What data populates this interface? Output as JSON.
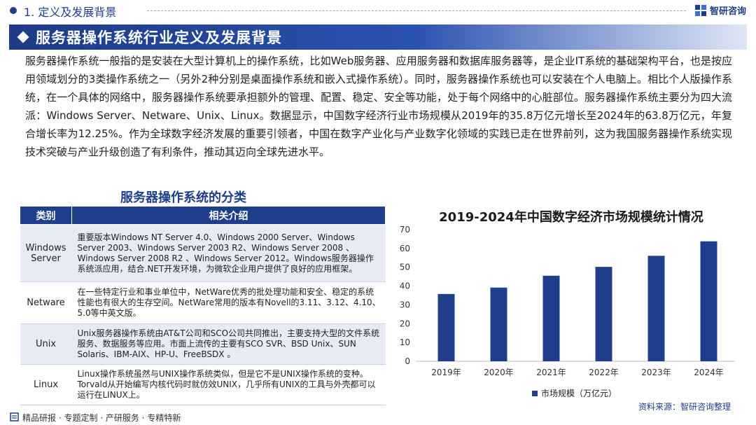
{
  "header": {
    "section_title": "1. 定义及发展背景",
    "brand_name": "智研咨询"
  },
  "banner": {
    "title": "服务器操作系统行业定义及发展背景"
  },
  "intro": "服务器操作系统一般指的是安装在大型计算机上的操作系统，比如Web服务器、应用服务器和数据库服务器等，是企业IT系统的基础架构平台，也是按应用领域划分的3类操作系统之一（另外2种分别是桌面操作系统和嵌入式操作系统）。同时，服务器操作系统也可以安装在个人电脑上。相比个人版操作系统，在一个具体的网络中，服务器操作系统要承担额外的管理、配置、稳定、安全等功能，处于每个网络中的心脏部位。服务器操作系统主要分为四大流派：Windows Server、Netware、Unix、Linux。数据显示，中国数字经济行业市场规模从2019年的35.8万亿元增长至2024年的63.8万亿元，年复合增长率为12.25%。作为全球数字经济发展的重要引领者，中国在数字产业化与产业数字化领域的实践已走在世界前列，这为我国服务器操作系统实现技术突破与产业升级创造了有利条件，推动其迈向全球先进水平。",
  "table": {
    "title": "服务器操作系统的分类",
    "headers": [
      "类别",
      "相关介绍"
    ],
    "rows": [
      {
        "category": "Windows Server",
        "description": "重要版本Windows NT Server 4.0、Windows 2000 Server、Windows Server 2003、Windows Server 2003 R2、Windows Server 2008 、Windows Server 2008 R2 、Windows Server 2012。Windows服务器操作系统派应用，结合.NET开发环境，为微软企业用户提供了良好的应用框架。"
      },
      {
        "category": "Netware",
        "description": "在一些特定行业和事业单位中，NetWare优秀的批处理功能和安全、稳定的系统性能也有很大的生存空间。NetWare常用的版本有Novell的3.11、3.12、4.10、5.0等中英文版。"
      },
      {
        "category": "Unix",
        "description": "Unix服务器操作系统由AT&T公司和SCO公司共同推出，主要支持大型的文件系统服务、数据服务等应用。市面上流传的主要有SCO SVR、BSD Unix、SUN Solaris、IBM-AIX、HP-U、FreeBSDX 。"
      },
      {
        "category": "Linux",
        "description": "Linux操作系统虽然与UNIX操作系统类似，但是它不是UNIX操作系统的变种。Torvald从开始编写内核代码时就仿效UNIX，几乎所有UNIX的工具与外壳都可以运行在LINUX上。"
      }
    ]
  },
  "chart_data": {
    "type": "bar",
    "title": "2019-2024年中国数字经济市场规模统计情况",
    "categories": [
      "2019年",
      "2020年",
      "2021年",
      "2022年",
      "2023年",
      "2024年"
    ],
    "series": [
      {
        "name": "市场规模（万亿元）",
        "values": [
          35.8,
          39.2,
          45.5,
          50.2,
          56.1,
          63.8
        ],
        "color": "#1f3f8c"
      }
    ],
    "yticks": [
      0,
      10,
      20,
      30,
      40,
      50,
      60,
      70
    ],
    "ylim": [
      0,
      70
    ],
    "grid": false,
    "legend": "bottom"
  },
  "source": "资料来源：智研咨询整理",
  "footer": {
    "text": "精品研报 · 专题定制 · 产研服务 · 专精特新"
  },
  "colors": {
    "primary": "#1f3f8c",
    "row_shade": "#e6ebf5"
  }
}
